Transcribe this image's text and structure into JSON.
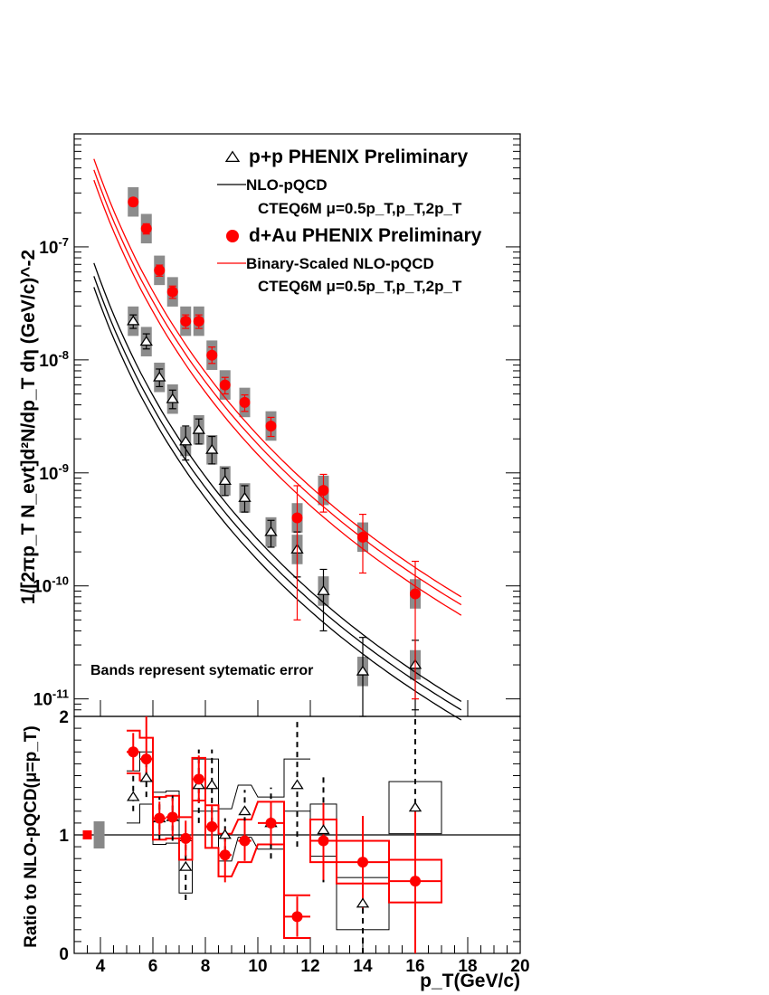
{
  "chart_data": [
    {
      "type": "scatter",
      "panel": "spectra",
      "ylabel": "1/[2πp_T N_evt]d²N/dp_T dη (GeV/c)^-2",
      "yscale": "log",
      "xlim": [
        3,
        20
      ],
      "ylim": [
        7e-12,
        1e-06
      ],
      "y_tick_labels": [
        "10^-11",
        "10^-10",
        "10^-9",
        "10^-8",
        "10^-7"
      ],
      "annotation": "Bands represent sytematic error",
      "legend": [
        {
          "label": "p+p PHENIX Preliminary",
          "marker": "open-triangle",
          "color": "#000000"
        },
        {
          "label": "NLO-pQCD",
          "marker": "line",
          "color": "#000000",
          "sub": "CTEQ6M μ=0.5p_T,p_T,2p_T"
        },
        {
          "label": "d+Au PHENIX Preliminary",
          "marker": "filled-circle",
          "color": "#ff0000"
        },
        {
          "label": "Binary-Scaled NLO-pQCD",
          "marker": "line",
          "color": "#ff0000",
          "sub": "CTEQ6M μ=0.5p_T,p_T,2p_T"
        }
      ],
      "series": [
        {
          "name": "p+p PHENIX Preliminary",
          "color": "#000000",
          "x": [
            5.25,
            5.75,
            6.25,
            6.75,
            7.25,
            7.75,
            8.25,
            8.75,
            9.5,
            10.5,
            11.5,
            12.5,
            14,
            16
          ],
          "y": [
            2.2e-08,
            1.45e-08,
            7e-09,
            4.5e-09,
            1.9e-09,
            2.4e-09,
            1.6e-09,
            8.5e-10,
            6e-10,
            3e-10,
            2.1e-10,
            9e-11,
            1.75e-11,
            2e-11
          ],
          "err_lo": [
            1.9e-08,
            1.25e-08,
            5.8e-09,
            3.7e-09,
            1.3e-09,
            1.8e-09,
            1.2e-09,
            6.3e-10,
            4.5e-10,
            2.2e-10,
            1.2e-10,
            4e-11,
            1e-12,
            8e-12
          ],
          "err_hi": [
            2.5e-08,
            1.7e-08,
            8.3e-09,
            5.4e-09,
            2.6e-09,
            3e-09,
            2.1e-09,
            1.1e-09,
            7.7e-10,
            3.8e-10,
            3e-10,
            1.4e-10,
            3.5e-11,
            3.3e-11
          ]
        },
        {
          "name": "d+Au PHENIX Preliminary",
          "color": "#ff0000",
          "x": [
            5.25,
            5.75,
            6.25,
            6.75,
            7.25,
            7.75,
            8.25,
            8.75,
            9.5,
            10.5,
            11.5,
            12.5,
            14,
            16
          ],
          "y": [
            2.5e-07,
            1.45e-07,
            6.2e-08,
            4e-08,
            2.2e-08,
            2.2e-08,
            1.1e-08,
            6e-09,
            4.2e-09,
            2.6e-09,
            4e-10,
            7e-10,
            2.7e-10,
            8.5e-11
          ],
          "err_lo": [
            2.3e-07,
            1.3e-07,
            5.5e-08,
            3.5e-08,
            1.9e-08,
            1.9e-08,
            9.3e-09,
            5e-09,
            3.5e-09,
            2.1e-09,
            5e-11,
            4.5e-10,
            1.3e-10,
            1e-11
          ],
          "err_hi": [
            2.7e-07,
            1.6e-07,
            6.9e-08,
            4.5e-08,
            2.5e-08,
            2.5e-08,
            1.3e-08,
            7e-09,
            4.9e-09,
            3.1e-09,
            7.7e-10,
            9.7e-10,
            4.3e-10,
            1.65e-10
          ]
        }
      ],
      "curves": [
        {
          "color": "#000000",
          "x_range": [
            3.75,
            17.75
          ],
          "y_at_start": [
            7.2e-08,
            5.5e-08,
            4.4e-08
          ],
          "y_at_end": [
            9.5e-12,
            8e-12,
            6.5e-12
          ]
        },
        {
          "color": "#ff0000",
          "x_range": [
            3.75,
            17.75
          ],
          "y_at_start": [
            6e-07,
            4.8e-07,
            3.9e-07
          ],
          "y_at_end": [
            8e-11,
            6.8e-11,
            5.5e-11
          ]
        }
      ]
    },
    {
      "type": "scatter",
      "panel": "ratio",
      "xlabel": "p_T(GeV/c)",
      "ylabel": "Ratio to NLO-pQCD(μ=p_T)",
      "xlim": [
        3,
        20
      ],
      "ylim": [
        0,
        2
      ],
      "x_ticks": [
        4,
        6,
        8,
        10,
        12,
        14,
        16,
        18,
        20
      ],
      "y_ticks": [
        0,
        1,
        2
      ],
      "series": [
        {
          "name": "p+p PHENIX Preliminary",
          "color": "#000000",
          "x": [
            5.25,
            5.75,
            6.25,
            6.75,
            7.25,
            7.75,
            8.25,
            8.75,
            9.5,
            10.5,
            11.5,
            12.5,
            14,
            16
          ],
          "y": [
            1.32,
            1.48,
            1.14,
            1.15,
            0.73,
            1.42,
            1.42,
            1.0,
            1.2,
            1.1,
            1.42,
            1.04,
            0.42,
            1.23
          ],
          "err_lo": [
            1.2,
            1.32,
            0.96,
            0.95,
            0.45,
            1.1,
            1.1,
            0.86,
            1.02,
            0.8,
            0.9,
            0.6,
            0.0,
            0.0
          ],
          "err_hi": [
            1.5,
            1.68,
            1.32,
            1.35,
            1.0,
            1.72,
            1.72,
            1.14,
            1.38,
            1.4,
            1.98,
            1.5,
            0.95,
            2.0
          ]
        },
        {
          "name": "d+Au PHENIX Preliminary",
          "color": "#ff0000",
          "x": [
            5.25,
            5.75,
            6.25,
            6.75,
            7.25,
            7.75,
            8.25,
            8.75,
            9.5,
            10.5,
            11.5,
            12.5,
            14,
            16
          ],
          "y": [
            1.7,
            1.64,
            1.14,
            1.15,
            0.97,
            1.47,
            1.07,
            0.83,
            0.95,
            1.1,
            0.31,
            0.95,
            0.77,
            0.61
          ],
          "err_lo": [
            1.54,
            1.48,
            1.0,
            0.99,
            0.82,
            1.27,
            0.89,
            0.6,
            0.78,
            0.92,
            0.14,
            0.62,
            0.38,
            0.0
          ],
          "err_hi": [
            1.86,
            2.0,
            1.28,
            1.31,
            1.12,
            1.67,
            1.25,
            1.05,
            1.12,
            1.28,
            0.48,
            1.27,
            1.16,
            1.22
          ]
        }
      ],
      "normalization_boxes": [
        {
          "x": 3.5,
          "y": 1.0,
          "color": "#ff0000"
        },
        {
          "x": 3.95,
          "y": 1.0,
          "color": "#888888"
        }
      ],
      "unity_line": 1
    }
  ]
}
